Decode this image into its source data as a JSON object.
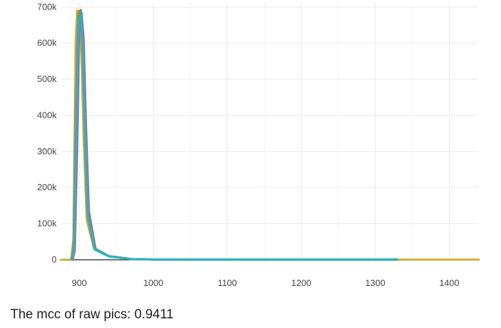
{
  "chart_data": {
    "type": "line",
    "title": "",
    "xlabel": "",
    "ylabel": "",
    "xlim": [
      875,
      1440
    ],
    "ylim": [
      -2000,
      712000
    ],
    "grid": true,
    "legend": "none",
    "x_ticks": [
      {
        "value": 900,
        "label": "900"
      },
      {
        "value": 1000,
        "label": "1000"
      },
      {
        "value": 1100,
        "label": "1100"
      },
      {
        "value": 1200,
        "label": "1200"
      },
      {
        "value": 1300,
        "label": "1300"
      },
      {
        "value": 1400,
        "label": "1400"
      }
    ],
    "y_ticks": [
      {
        "value": 0,
        "label": "0"
      },
      {
        "value": 100000,
        "label": "100k"
      },
      {
        "value": 200000,
        "label": "200k"
      },
      {
        "value": 300000,
        "label": "300k"
      },
      {
        "value": 400000,
        "label": "400k"
      },
      {
        "value": 500000,
        "label": "500k"
      },
      {
        "value": 600000,
        "label": "600k"
      },
      {
        "value": 700000,
        "label": "700k"
      }
    ],
    "series": [
      {
        "color": "#444444",
        "x": [
          884,
          1000,
          1200,
          1440
        ],
        "y": [
          0,
          0,
          0,
          0
        ]
      },
      {
        "color": "#c9b12f",
        "x": [
          875,
          889,
          892,
          895,
          897,
          900,
          903,
          906,
          910,
          920,
          940,
          970,
          1000,
          1200,
          1440
        ],
        "y": [
          0,
          0,
          60000,
          600000,
          690000,
          690000,
          560000,
          330000,
          110000,
          30000,
          10000,
          2000,
          500,
          200,
          200
        ]
      },
      {
        "color": "#e8744a",
        "x": [
          889,
          892,
          895,
          898,
          901,
          904,
          907,
          911,
          920,
          940,
          970,
          1000,
          1330
        ],
        "y": [
          0,
          40000,
          420000,
          680000,
          690000,
          580000,
          350000,
          120000,
          32000,
          10000,
          2000,
          600,
          300
        ]
      },
      {
        "color": "#d9534f",
        "x": [
          890,
          893,
          896,
          899,
          902,
          905,
          908,
          912,
          922,
          940,
          970,
          1000,
          1330
        ],
        "y": [
          0,
          30000,
          350000,
          660000,
          692000,
          600000,
          370000,
          130000,
          30000,
          10000,
          2000,
          600,
          300
        ]
      },
      {
        "color": "#8e6fb8",
        "x": [
          891,
          894,
          897,
          900,
          903,
          906,
          909,
          913,
          922,
          940,
          970,
          1000,
          1330
        ],
        "y": [
          0,
          25000,
          300000,
          640000,
          685000,
          610000,
          380000,
          135000,
          30000,
          10000,
          2000,
          600,
          300
        ]
      },
      {
        "color": "#2bb673",
        "x": [
          890,
          893,
          896,
          899,
          902,
          905,
          908,
          912,
          921,
          940,
          970,
          1000,
          1330
        ],
        "y": [
          0,
          35000,
          380000,
          670000,
          688000,
          590000,
          360000,
          125000,
          30000,
          10000,
          2000,
          600,
          300
        ]
      },
      {
        "color": "#2ab3c0",
        "x": [
          890,
          893,
          896,
          899,
          902,
          905,
          908,
          912,
          921,
          940,
          970,
          1000,
          1330
        ],
        "y": [
          0,
          30000,
          360000,
          655000,
          675000,
          585000,
          350000,
          120000,
          28000,
          9000,
          2000,
          500,
          300
        ]
      }
    ]
  },
  "caption": "The mcc of raw pics: 0.9411"
}
